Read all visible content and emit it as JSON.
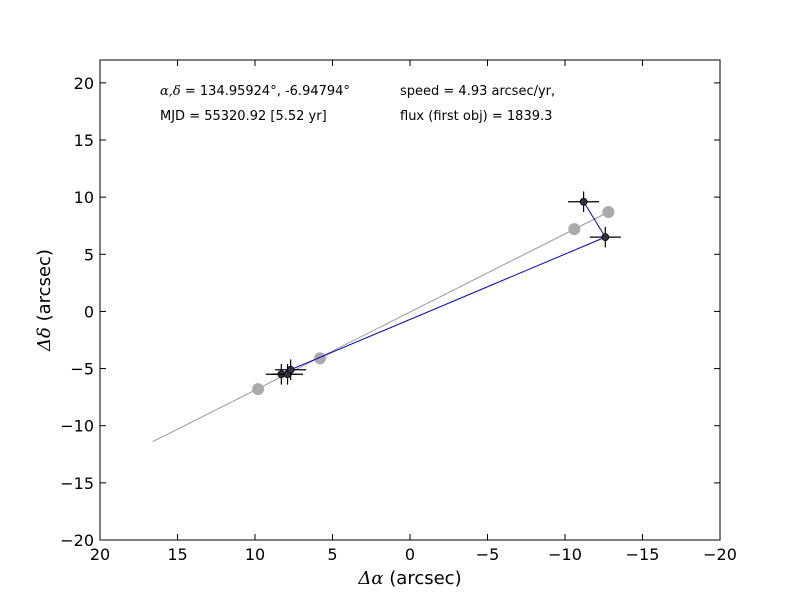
{
  "chart_data": {
    "type": "scatter",
    "xlabel_symbol": "Δα",
    "xlabel_text": " (arcsec)",
    "ylabel_symbol": "Δδ",
    "ylabel_text": " (arcsec)",
    "xlim": [
      20,
      -20
    ],
    "ylim": [
      -20,
      22
    ],
    "xticks": [
      20,
      15,
      10,
      5,
      0,
      -5,
      -10,
      -15,
      -20
    ],
    "xtick_labels": [
      "20",
      "15",
      "10",
      "5",
      "0",
      "−5",
      "−10",
      "−15",
      "−20"
    ],
    "yticks": [
      20,
      15,
      10,
      5,
      0,
      -5,
      -10,
      -15,
      -20
    ],
    "ytick_labels": [
      "20",
      "15",
      "10",
      "5",
      "0",
      "−5",
      "−10",
      "−15",
      "−20"
    ],
    "grid": false,
    "annotations": {
      "radec_symbol": "α,δ",
      "radec_value": " = 134.95924°, -6.94794°",
      "mjd": "MJD = 55320.92 [5.52 yr]",
      "speed": "speed = 4.93 arcsec/yr,",
      "flux": "flux (first obj) = 1839.3"
    },
    "series": [
      {
        "kind": "fit-line",
        "color": "#999999",
        "x": [
          16.6,
          -12.8
        ],
        "y": [
          -11.4,
          8.7
        ]
      },
      {
        "kind": "predicted-positions",
        "color": "#aaaaaa",
        "x": [
          9.8,
          5.8,
          -10.6,
          -12.8
        ],
        "y": [
          -6.8,
          -4.1,
          7.2,
          8.7
        ]
      },
      {
        "kind": "path",
        "color": "#0000cc",
        "x": [
          7.7,
          -12.6,
          -11.2
        ],
        "y": [
          -5.1,
          6.5,
          9.6
        ]
      },
      {
        "kind": "observed-positions",
        "color": "#333344",
        "x": [
          8.3,
          7.9,
          7.7,
          -12.6,
          -11.2
        ],
        "y": [
          -5.5,
          -5.5,
          -5.1,
          6.5,
          9.6
        ],
        "xerr": [
          1.0,
          1.0,
          1.0,
          1.0,
          1.0
        ],
        "yerr": [
          0.9,
          0.9,
          0.9,
          0.9,
          0.9
        ]
      }
    ]
  }
}
